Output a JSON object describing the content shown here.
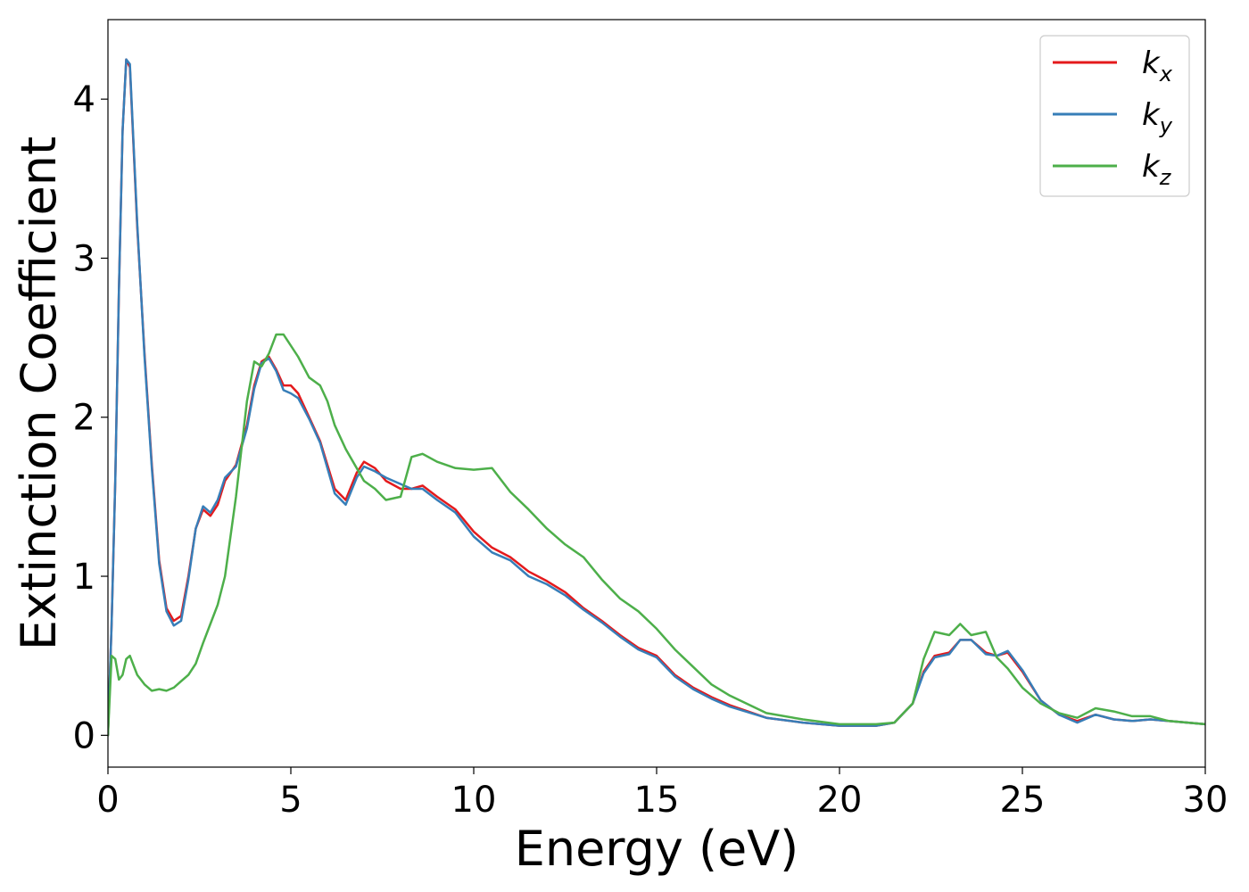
{
  "chart_data": {
    "type": "line",
    "title": "",
    "xlabel": "Energy (eV)",
    "ylabel": "Extinction Coefficient",
    "xlim": [
      0,
      30
    ],
    "ylim": [
      -0.2,
      4.5
    ],
    "xticks": [
      0,
      5,
      10,
      15,
      20,
      25,
      30
    ],
    "yticks": [
      0,
      1,
      2,
      3,
      4
    ],
    "grid": false,
    "legend_position": "top-right",
    "series": [
      {
        "name": "k_x",
        "legend_main": "k",
        "legend_sub": "x",
        "color": "#e41a1c",
        "x": [
          0,
          0.1,
          0.2,
          0.3,
          0.4,
          0.5,
          0.6,
          0.7,
          0.8,
          0.9,
          1.0,
          1.2,
          1.4,
          1.6,
          1.8,
          2.0,
          2.2,
          2.4,
          2.6,
          2.8,
          3.0,
          3.2,
          3.5,
          3.8,
          4.0,
          4.2,
          4.4,
          4.6,
          4.8,
          5.0,
          5.2,
          5.5,
          5.8,
          6.0,
          6.2,
          6.5,
          6.8,
          7.0,
          7.3,
          7.6,
          8.0,
          8.3,
          8.6,
          9.0,
          9.5,
          10.0,
          10.5,
          11.0,
          11.5,
          12.0,
          12.5,
          13.0,
          13.5,
          14.0,
          14.5,
          15.0,
          15.5,
          16.0,
          16.5,
          17.0,
          18.0,
          19.0,
          20.0,
          21.0,
          21.5,
          22.0,
          22.3,
          22.6,
          23.0,
          23.3,
          23.6,
          24.0,
          24.3,
          24.6,
          25.0,
          25.5,
          26.0,
          26.5,
          27.0,
          27.5,
          28.0,
          28.5,
          29.0,
          30.0
        ],
        "y": [
          0.0,
          0.7,
          1.6,
          2.8,
          3.8,
          4.25,
          4.2,
          3.7,
          3.2,
          2.8,
          2.4,
          1.7,
          1.1,
          0.8,
          0.72,
          0.75,
          1.0,
          1.3,
          1.42,
          1.38,
          1.45,
          1.6,
          1.7,
          1.95,
          2.2,
          2.35,
          2.38,
          2.3,
          2.2,
          2.2,
          2.15,
          2.0,
          1.85,
          1.7,
          1.55,
          1.48,
          1.65,
          1.72,
          1.68,
          1.6,
          1.55,
          1.55,
          1.57,
          1.5,
          1.42,
          1.28,
          1.18,
          1.12,
          1.03,
          0.97,
          0.9,
          0.8,
          0.72,
          0.63,
          0.55,
          0.5,
          0.38,
          0.3,
          0.24,
          0.19,
          0.11,
          0.08,
          0.06,
          0.06,
          0.08,
          0.2,
          0.4,
          0.5,
          0.52,
          0.6,
          0.6,
          0.52,
          0.5,
          0.52,
          0.4,
          0.22,
          0.13,
          0.09,
          0.13,
          0.1,
          0.09,
          0.1,
          0.09,
          0.07
        ]
      },
      {
        "name": "k_y",
        "legend_main": "k",
        "legend_sub": "y",
        "color": "#377eb8",
        "x": [
          0,
          0.1,
          0.2,
          0.3,
          0.4,
          0.5,
          0.6,
          0.7,
          0.8,
          0.9,
          1.0,
          1.2,
          1.4,
          1.6,
          1.8,
          2.0,
          2.2,
          2.4,
          2.6,
          2.8,
          3.0,
          3.2,
          3.5,
          3.8,
          4.0,
          4.2,
          4.4,
          4.6,
          4.8,
          5.0,
          5.2,
          5.5,
          5.8,
          6.0,
          6.2,
          6.5,
          6.8,
          7.0,
          7.3,
          7.6,
          8.0,
          8.3,
          8.6,
          9.0,
          9.5,
          10.0,
          10.5,
          11.0,
          11.5,
          12.0,
          12.5,
          13.0,
          13.5,
          14.0,
          14.5,
          15.0,
          15.5,
          16.0,
          16.5,
          17.0,
          18.0,
          19.0,
          20.0,
          21.0,
          21.5,
          22.0,
          22.3,
          22.6,
          23.0,
          23.3,
          23.6,
          24.0,
          24.3,
          24.6,
          25.0,
          25.5,
          26.0,
          26.5,
          27.0,
          27.5,
          28.0,
          28.5,
          29.0,
          30.0
        ],
        "y": [
          0.0,
          0.7,
          1.6,
          2.8,
          3.8,
          4.25,
          4.22,
          3.72,
          3.22,
          2.8,
          2.38,
          1.68,
          1.08,
          0.78,
          0.69,
          0.72,
          0.98,
          1.3,
          1.44,
          1.4,
          1.48,
          1.62,
          1.69,
          1.93,
          2.18,
          2.34,
          2.37,
          2.29,
          2.17,
          2.15,
          2.12,
          1.99,
          1.84,
          1.68,
          1.52,
          1.45,
          1.62,
          1.69,
          1.66,
          1.62,
          1.58,
          1.55,
          1.55,
          1.48,
          1.4,
          1.25,
          1.15,
          1.1,
          1.0,
          0.95,
          0.88,
          0.79,
          0.71,
          0.62,
          0.54,
          0.49,
          0.37,
          0.29,
          0.23,
          0.18,
          0.11,
          0.08,
          0.06,
          0.06,
          0.08,
          0.2,
          0.39,
          0.49,
          0.51,
          0.6,
          0.6,
          0.51,
          0.5,
          0.53,
          0.41,
          0.22,
          0.13,
          0.08,
          0.13,
          0.1,
          0.09,
          0.1,
          0.09,
          0.07
        ]
      },
      {
        "name": "k_z",
        "legend_main": "k",
        "legend_sub": "z",
        "color": "#4daf4a",
        "x": [
          0,
          0.1,
          0.2,
          0.3,
          0.4,
          0.5,
          0.6,
          0.7,
          0.8,
          0.9,
          1.0,
          1.2,
          1.4,
          1.6,
          1.8,
          2.0,
          2.2,
          2.4,
          2.6,
          2.8,
          3.0,
          3.2,
          3.5,
          3.8,
          4.0,
          4.2,
          4.4,
          4.6,
          4.8,
          5.0,
          5.2,
          5.5,
          5.8,
          6.0,
          6.2,
          6.5,
          6.8,
          7.0,
          7.3,
          7.6,
          8.0,
          8.3,
          8.6,
          9.0,
          9.5,
          10.0,
          10.5,
          11.0,
          11.5,
          12.0,
          12.5,
          13.0,
          13.5,
          14.0,
          14.5,
          15.0,
          15.5,
          16.0,
          16.5,
          17.0,
          18.0,
          19.0,
          20.0,
          21.0,
          21.5,
          22.0,
          22.3,
          22.6,
          23.0,
          23.3,
          23.6,
          24.0,
          24.3,
          24.6,
          25.0,
          25.5,
          26.0,
          26.5,
          27.0,
          27.5,
          28.0,
          28.5,
          29.0,
          30.0
        ],
        "y": [
          0.0,
          0.5,
          0.48,
          0.35,
          0.38,
          0.48,
          0.5,
          0.44,
          0.38,
          0.35,
          0.32,
          0.28,
          0.29,
          0.28,
          0.3,
          0.34,
          0.38,
          0.45,
          0.58,
          0.7,
          0.82,
          1.0,
          1.5,
          2.1,
          2.35,
          2.32,
          2.4,
          2.52,
          2.52,
          2.45,
          2.38,
          2.25,
          2.2,
          2.1,
          1.95,
          1.8,
          1.68,
          1.6,
          1.55,
          1.48,
          1.5,
          1.75,
          1.77,
          1.72,
          1.68,
          1.67,
          1.68,
          1.53,
          1.42,
          1.3,
          1.2,
          1.12,
          0.98,
          0.86,
          0.78,
          0.67,
          0.54,
          0.43,
          0.32,
          0.25,
          0.14,
          0.1,
          0.07,
          0.07,
          0.08,
          0.2,
          0.48,
          0.65,
          0.63,
          0.7,
          0.63,
          0.65,
          0.49,
          0.42,
          0.3,
          0.2,
          0.14,
          0.11,
          0.17,
          0.15,
          0.12,
          0.12,
          0.09,
          0.07
        ]
      }
    ]
  }
}
